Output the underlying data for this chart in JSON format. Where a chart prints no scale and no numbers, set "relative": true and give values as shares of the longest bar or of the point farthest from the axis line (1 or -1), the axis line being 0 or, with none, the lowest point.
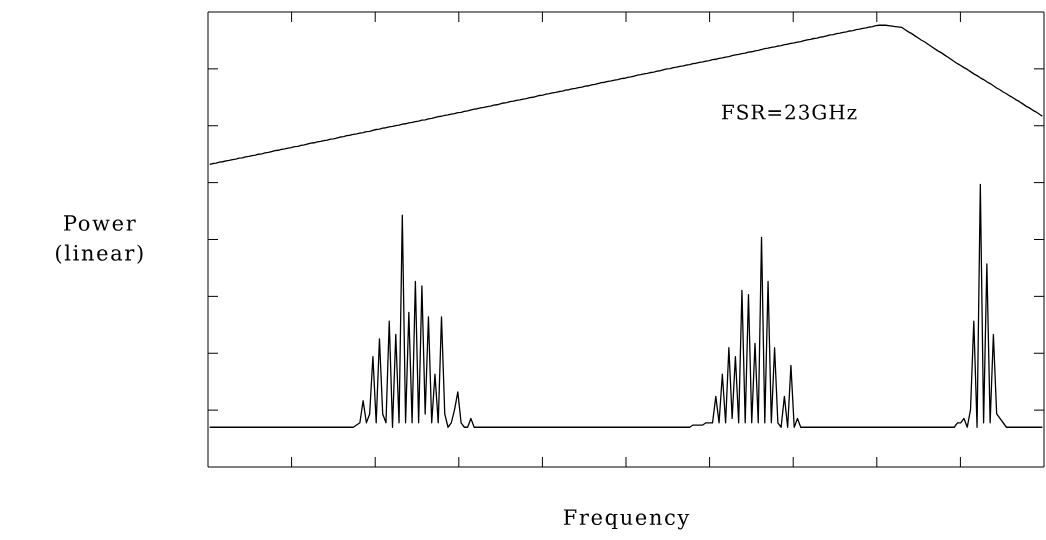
{
  "chart_data": {
    "type": "line",
    "relative": true,
    "xlabel": "Frequency",
    "ylabel": "Power (linear)",
    "annotations": [
      "FSR=23GHz"
    ],
    "categories": [
      null,
      null,
      null,
      null,
      null,
      null,
      null,
      null,
      null,
      null,
      null,
      null,
      null,
      null,
      null,
      null,
      null,
      null,
      null,
      null,
      null,
      null,
      null,
      null,
      null,
      null,
      null,
      null,
      null,
      null,
      null,
      null,
      null,
      null,
      null,
      null,
      null,
      null,
      null,
      null,
      null,
      null,
      null,
      null,
      null,
      null,
      null,
      null,
      null,
      null,
      null,
      null,
      null,
      null,
      null,
      null,
      null,
      null,
      null,
      null,
      null,
      null,
      null,
      null,
      null,
      null,
      null,
      null,
      null,
      null,
      null,
      null,
      null,
      null,
      null,
      null,
      null,
      null,
      null,
      null,
      null,
      null,
      null,
      null,
      null,
      null,
      null,
      null,
      null,
      null,
      null,
      null,
      null,
      null,
      null,
      null,
      null,
      null,
      null,
      null,
      null,
      null,
      null,
      null,
      null,
      null,
      null,
      null,
      null,
      null,
      null,
      null,
      null,
      null,
      null,
      null,
      null,
      null,
      null,
      null,
      null,
      null,
      null,
      null,
      null,
      null,
      null,
      null,
      null,
      null,
      null,
      null,
      null,
      null,
      null,
      null,
      null,
      null,
      null,
      null,
      null,
      null,
      null,
      null,
      null,
      null,
      null,
      null,
      null,
      null,
      null,
      null,
      null,
      null,
      null,
      null,
      null,
      null,
      null,
      null,
      null,
      null,
      null,
      null,
      null,
      null,
      null,
      null,
      null,
      null,
      null,
      null,
      null,
      null,
      null,
      null,
      null,
      null,
      null,
      null,
      null,
      null,
      null,
      null,
      null,
      null,
      null,
      null,
      null,
      null,
      null,
      null,
      null,
      null,
      null,
      null,
      null,
      null,
      null,
      null,
      null,
      null,
      null,
      null,
      null,
      null,
      null,
      null,
      null,
      null,
      null,
      null,
      null,
      null,
      null,
      null,
      null,
      null,
      null,
      null,
      null,
      null,
      null,
      null,
      null,
      null,
      null,
      null,
      null,
      null,
      null,
      null,
      null,
      null,
      null,
      null,
      null,
      null,
      null,
      null,
      null,
      null,
      null,
      null,
      null,
      null,
      null,
      null,
      null,
      null,
      null,
      null,
      null,
      null,
      null,
      null
    ],
    "series": [
      {
        "color": "#000000",
        "values": [
          0.685,
          0.687,
          0.688,
          0.69,
          0.691,
          0.693,
          0.694,
          0.696,
          0.697,
          0.699,
          0.7,
          0.702,
          0.703,
          0.705,
          0.706,
          0.708,
          0.709,
          0.711,
          0.712,
          0.714,
          0.716,
          0.717,
          0.719,
          0.72,
          0.722,
          0.723,
          0.725,
          0.726,
          0.728,
          0.729,
          0.731,
          0.733,
          0.734,
          0.736,
          0.737,
          0.739,
          0.74,
          0.742,
          0.743,
          0.745,
          0.747,
          0.748,
          0.75,
          0.751,
          0.753,
          0.754,
          0.756,
          0.757,
          0.759,
          0.76,
          0.762,
          0.764,
          0.765,
          0.767,
          0.768,
          0.77,
          0.771,
          0.773,
          0.774,
          0.776,
          0.777,
          0.779,
          0.78,
          0.782,
          0.783,
          0.785,
          0.786,
          0.788,
          0.789,
          0.791,
          0.793,
          0.794,
          0.796,
          0.797,
          0.799,
          0.8,
          0.802,
          0.803,
          0.805,
          0.806,
          0.808,
          0.81,
          0.811,
          0.813,
          0.814,
          0.816,
          0.817,
          0.819,
          0.82,
          0.822,
          0.824,
          0.825,
          0.827,
          0.828,
          0.83,
          0.831,
          0.833,
          0.834,
          0.836,
          0.837,
          0.839,
          0.841,
          0.842,
          0.844,
          0.845,
          0.847,
          0.848,
          0.85,
          0.851,
          0.853,
          0.854,
          0.856,
          0.857,
          0.859,
          0.86,
          0.862,
          0.863,
          0.865,
          0.866,
          0.868,
          0.87,
          0.871,
          0.873,
          0.874,
          0.876,
          0.877,
          0.879,
          0.88,
          0.882,
          0.883,
          0.885,
          0.887,
          0.888,
          0.89,
          0.891,
          0.893,
          0.894,
          0.896,
          0.897,
          0.899,
          0.901,
          0.902,
          0.904,
          0.905,
          0.907,
          0.908,
          0.91,
          0.911,
          0.913,
          0.914,
          0.916,
          0.917,
          0.919,
          0.92,
          0.922,
          0.923,
          0.925,
          0.926,
          0.928,
          0.929,
          0.931,
          0.933,
          0.934,
          0.936,
          0.937,
          0.939,
          0.94,
          0.942,
          0.943,
          0.945,
          0.947,
          0.948,
          0.95,
          0.951,
          0.953,
          0.954,
          0.956,
          0.957,
          0.959,
          0.96,
          0.962,
          0.963,
          0.965,
          0.967,
          0.968,
          0.97,
          0.971,
          0.973,
          0.974,
          0.976,
          0.978,
          0.979,
          0.981,
          0.982,
          0.984,
          0.985,
          0.987,
          0.988,
          0.99,
          0.991,
          0.993,
          0.994,
          0.996,
          0.997,
          0.999,
          1.0,
          1.0,
          1.0,
          0.999,
          0.998,
          0.997,
          0.996,
          0.995,
          0.99,
          0.985,
          0.981,
          0.976,
          0.971,
          0.966,
          0.962,
          0.957,
          0.952,
          0.947,
          0.942,
          0.938,
          0.933,
          0.928,
          0.923,
          0.918,
          0.913,
          0.909,
          0.904,
          0.9,
          0.895,
          0.89,
          0.886,
          0.881,
          0.877,
          0.872,
          0.868,
          0.863,
          0.858,
          0.854,
          0.849,
          0.845,
          0.84,
          0.836,
          0.831,
          0.827,
          0.822,
          0.817,
          0.813,
          0.808,
          0.804,
          0.799,
          0.794
        ]
      },
      {
        "color": "#000000",
        "values": [
          0.09,
          0.09,
          0.09,
          0.09,
          0.09,
          0.09,
          0.09,
          0.09,
          0.09,
          0.09,
          0.09,
          0.09,
          0.09,
          0.09,
          0.09,
          0.09,
          0.09,
          0.09,
          0.09,
          0.09,
          0.09,
          0.09,
          0.09,
          0.09,
          0.09,
          0.09,
          0.09,
          0.09,
          0.09,
          0.09,
          0.09,
          0.09,
          0.09,
          0.09,
          0.09,
          0.09,
          0.09,
          0.09,
          0.09,
          0.09,
          0.09,
          0.09,
          0.09,
          0.09,
          0.09,
          0.095,
          0.1,
          0.15,
          0.1,
          0.12,
          0.25,
          0.1,
          0.29,
          0.12,
          0.1,
          0.33,
          0.09,
          0.3,
          0.1,
          0.57,
          0.1,
          0.35,
          0.1,
          0.42,
          0.1,
          0.41,
          0.12,
          0.34,
          0.1,
          0.21,
          0.1,
          0.34,
          0.12,
          0.09,
          0.1,
          0.13,
          0.17,
          0.1,
          0.09,
          0.09,
          0.11,
          0.09,
          0.09,
          0.09,
          0.09,
          0.09,
          0.09,
          0.09,
          0.09,
          0.09,
          0.09,
          0.09,
          0.09,
          0.09,
          0.09,
          0.09,
          0.09,
          0.09,
          0.09,
          0.09,
          0.09,
          0.09,
          0.09,
          0.09,
          0.09,
          0.09,
          0.09,
          0.09,
          0.09,
          0.09,
          0.09,
          0.09,
          0.09,
          0.09,
          0.09,
          0.09,
          0.09,
          0.09,
          0.09,
          0.09,
          0.09,
          0.09,
          0.09,
          0.09,
          0.09,
          0.09,
          0.09,
          0.09,
          0.09,
          0.09,
          0.09,
          0.09,
          0.09,
          0.09,
          0.09,
          0.09,
          0.09,
          0.09,
          0.09,
          0.09,
          0.09,
          0.09,
          0.09,
          0.09,
          0.09,
          0.09,
          0.09,
          0.09,
          0.095,
          0.095,
          0.095,
          0.095,
          0.1,
          0.1,
          0.1,
          0.16,
          0.1,
          0.21,
          0.1,
          0.27,
          0.11,
          0.25,
          0.1,
          0.4,
          0.1,
          0.39,
          0.1,
          0.28,
          0.1,
          0.52,
          0.1,
          0.42,
          0.1,
          0.27,
          0.1,
          0.09,
          0.16,
          0.09,
          0.23,
          0.09,
          0.11,
          0.09,
          0.09,
          0.09,
          0.09,
          0.09,
          0.09,
          0.09,
          0.09,
          0.09,
          0.09,
          0.09,
          0.09,
          0.09,
          0.09,
          0.09,
          0.09,
          0.09,
          0.09,
          0.09,
          0.09,
          0.09,
          0.09,
          0.09,
          0.09,
          0.09,
          0.09,
          0.09,
          0.09,
          0.09,
          0.09,
          0.09,
          0.09,
          0.09,
          0.09,
          0.09,
          0.09,
          0.09,
          0.09,
          0.09,
          0.09,
          0.09,
          0.09,
          0.09,
          0.09,
          0.09,
          0.09,
          0.09,
          0.09,
          0.1,
          0.1,
          0.11,
          0.09,
          0.13,
          0.33,
          0.09,
          0.64,
          0.1,
          0.46,
          0.1,
          0.3,
          0.12,
          0.11,
          0.1,
          0.09,
          0.09,
          0.09,
          0.09,
          0.09,
          0.09,
          0.09,
          0.09,
          0.09,
          0.09,
          0.09,
          0.09
        ]
      }
    ]
  }
}
